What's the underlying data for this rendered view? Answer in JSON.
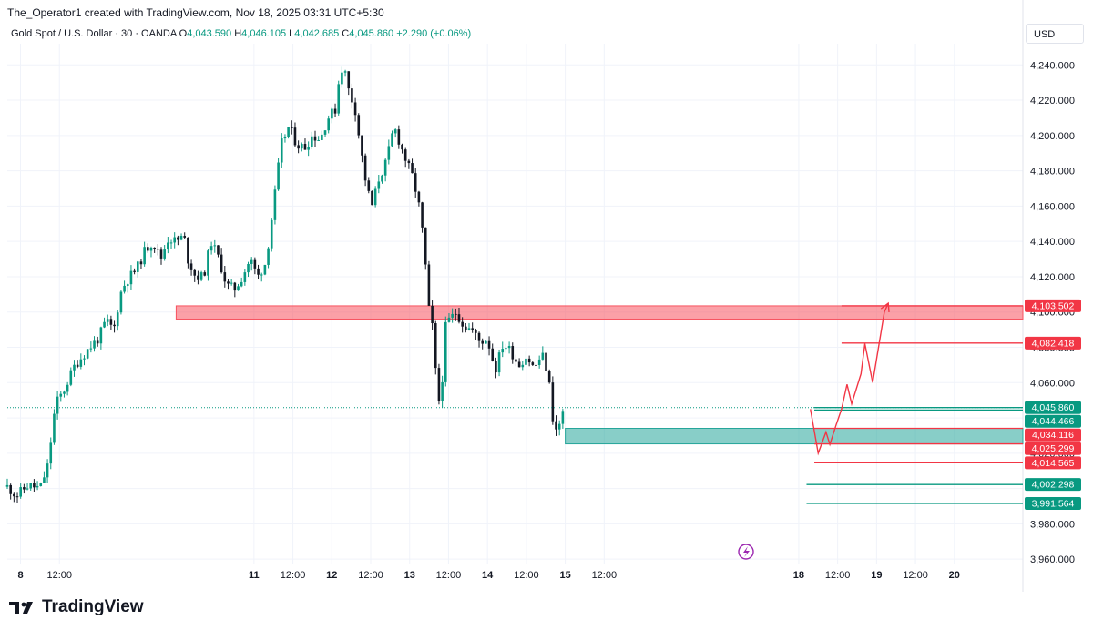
{
  "header": {
    "credit": "The_Operator1 created with TradingView.com, Nov 18, 2025 03:31 UTC+5:30",
    "symbol": "Gold Spot / U.S. Dollar · 30 · OANDA",
    "o_label": "O",
    "o_value": "4,043.590",
    "h_label": "H",
    "h_value": "4,046.105",
    "l_label": "L",
    "l_value": "4,042.685",
    "c_label": "C",
    "c_value": "4,045.860",
    "change": "+2.290 (+0.06%)",
    "currency": "USD"
  },
  "footer": {
    "brand": "TradingView"
  },
  "colors": {
    "up": "#089981",
    "down": "#131722",
    "zone": "#f7525f",
    "demand": "#26a69a",
    "price_line": "#089981",
    "path": "#f23645"
  },
  "chart_data": {
    "type": "candlestick",
    "yaxis": {
      "ticks": [
        3960,
        3980,
        4000,
        4020,
        4040,
        4060,
        4080,
        4100,
        4120,
        4140,
        4160,
        4180,
        4200,
        4220,
        4240
      ],
      "tick_labels": [
        "3,960.000",
        "3,980.000",
        "",
        "4,020.000",
        "",
        "4,060.000",
        "4,080.000",
        "4,100.000",
        "4,120.000",
        "4,140.000",
        "4,160.000",
        "4,180.000",
        "4,200.000",
        "4,220.000",
        "4,240.000"
      ],
      "range": [
        3957,
        4252
      ]
    },
    "xaxis": {
      "range_days": [
        7.83,
        20.88
      ],
      "ticks": [
        {
          "day": 8,
          "label": "8",
          "bold": true
        },
        {
          "day": 8.5,
          "label": "12:00",
          "bold": false
        },
        {
          "day": 11,
          "label": "11",
          "bold": true
        },
        {
          "day": 11.5,
          "label": "12:00",
          "bold": false
        },
        {
          "day": 12,
          "label": "12",
          "bold": true
        },
        {
          "day": 12.5,
          "label": "12:00",
          "bold": false
        },
        {
          "day": 13,
          "label": "13",
          "bold": true
        },
        {
          "day": 13.5,
          "label": "12:00",
          "bold": false
        },
        {
          "day": 14,
          "label": "14",
          "bold": true
        },
        {
          "day": 14.5,
          "label": "12:00",
          "bold": false
        },
        {
          "day": 15,
          "label": "15",
          "bold": true
        },
        {
          "day": 15.5,
          "label": "12:00",
          "bold": false
        },
        {
          "day": 18,
          "label": "18",
          "bold": true
        },
        {
          "day": 18.5,
          "label": "12:00",
          "bold": false
        },
        {
          "day": 19,
          "label": "19",
          "bold": true
        },
        {
          "day": 19.5,
          "label": "12:00",
          "bold": false
        },
        {
          "day": 20,
          "label": "20",
          "bold": true
        }
      ]
    },
    "price_path": [
      [
        7.83,
        4001
      ],
      [
        7.95,
        3996
      ],
      [
        8.1,
        4002
      ],
      [
        8.25,
        4000
      ],
      [
        8.35,
        4013
      ],
      [
        8.45,
        4048
      ],
      [
        8.55,
        4055
      ],
      [
        8.7,
        4070
      ],
      [
        8.85,
        4078
      ],
      [
        9.0,
        4085
      ],
      [
        9.1,
        4095
      ],
      [
        9.2,
        4090
      ],
      [
        9.28,
        4110
      ],
      [
        9.35,
        4117
      ],
      [
        9.5,
        4125
      ],
      [
        9.6,
        4135
      ],
      [
        9.7,
        4140
      ],
      [
        9.8,
        4130
      ],
      [
        9.9,
        4142
      ],
      [
        10.0,
        4140
      ],
      [
        10.1,
        4143
      ],
      [
        10.15,
        4130
      ],
      [
        10.25,
        4120
      ],
      [
        10.35,
        4120
      ],
      [
        10.45,
        4140
      ],
      [
        10.55,
        4130
      ],
      [
        10.65,
        4115
      ],
      [
        10.75,
        4113
      ],
      [
        10.85,
        4120
      ],
      [
        10.95,
        4130
      ],
      [
        11.05,
        4120
      ],
      [
        11.15,
        4128
      ],
      [
        11.25,
        4160
      ],
      [
        11.35,
        4195
      ],
      [
        11.45,
        4205
      ],
      [
        11.55,
        4195
      ],
      [
        11.65,
        4193
      ],
      [
        11.75,
        4200
      ],
      [
        11.85,
        4198
      ],
      [
        11.95,
        4210
      ],
      [
        12.05,
        4215
      ],
      [
        12.1,
        4235
      ],
      [
        12.15,
        4240
      ],
      [
        12.22,
        4225
      ],
      [
        12.3,
        4215
      ],
      [
        12.38,
        4190
      ],
      [
        12.45,
        4170
      ],
      [
        12.52,
        4160
      ],
      [
        12.6,
        4175
      ],
      [
        12.7,
        4185
      ],
      [
        12.8,
        4205
      ],
      [
        12.88,
        4195
      ],
      [
        12.96,
        4185
      ],
      [
        13.05,
        4175
      ],
      [
        13.12,
        4160
      ],
      [
        13.18,
        4140
      ],
      [
        13.25,
        4100
      ],
      [
        13.3,
        4090
      ],
      [
        13.35,
        4055
      ],
      [
        13.4,
        4045
      ],
      [
        13.45,
        4090
      ],
      [
        13.5,
        4095
      ],
      [
        13.6,
        4100
      ],
      [
        13.7,
        4092
      ],
      [
        13.8,
        4090
      ],
      [
        13.9,
        4083
      ],
      [
        14.0,
        4085
      ],
      [
        14.1,
        4067
      ],
      [
        14.2,
        4082
      ],
      [
        14.3,
        4078
      ],
      [
        14.4,
        4070
      ],
      [
        14.5,
        4075
      ],
      [
        14.6,
        4068
      ],
      [
        14.7,
        4076
      ],
      [
        14.78,
        4065
      ],
      [
        14.84,
        4040
      ],
      [
        14.9,
        4030
      ],
      [
        14.95,
        4042
      ],
      [
        15.0,
        4046
      ]
    ],
    "zones": [
      {
        "from": 4096,
        "to": 4103.5,
        "start_day": 10.0,
        "end_day": 20.88,
        "color": "zone"
      },
      {
        "from": 4025.3,
        "to": 4034.1,
        "start_day": 15.0,
        "end_day": 20.88,
        "color": "demand"
      }
    ],
    "levels": [
      {
        "value": 4103.502,
        "label": "4,103.502",
        "color": "#f23645",
        "start_day": 18.55
      },
      {
        "value": 4082.418,
        "label": "4,082.418",
        "color": "#f23645",
        "start_day": 18.55
      },
      {
        "value": 4045.86,
        "label": "4,045.860",
        "color": "#089981",
        "start_day": 18.2
      },
      {
        "value": 4044.466,
        "label": "4,044.466",
        "color": "#089981",
        "start_day": 18.2
      },
      {
        "value": 4034.116,
        "label": "4,034.116",
        "color": "#f23645",
        "start_day": 18.2
      },
      {
        "value": 4025.299,
        "label": "4,025.299",
        "color": "#f23645",
        "start_day": 18.2
      },
      {
        "value": 4014.565,
        "label": "4,014.565",
        "color": "#f23645",
        "start_day": 18.2
      },
      {
        "value": 4002.298,
        "label": "4,002.298",
        "color": "#089981",
        "start_day": 18.1
      },
      {
        "value": 3991.564,
        "label": "3,991.564",
        "color": "#089981",
        "start_day": 18.1
      }
    ],
    "projection": [
      [
        18.15,
        4045
      ],
      [
        18.25,
        4020
      ],
      [
        18.35,
        4032
      ],
      [
        18.4,
        4025
      ],
      [
        18.48,
        4036
      ],
      [
        18.55,
        4045
      ],
      [
        18.62,
        4059
      ],
      [
        18.68,
        4048
      ],
      [
        18.8,
        4065
      ],
      [
        18.85,
        4082
      ],
      [
        18.95,
        4060
      ],
      [
        19.1,
        4100
      ],
      [
        19.15,
        4105
      ]
    ],
    "current_price": 4045.86
  }
}
